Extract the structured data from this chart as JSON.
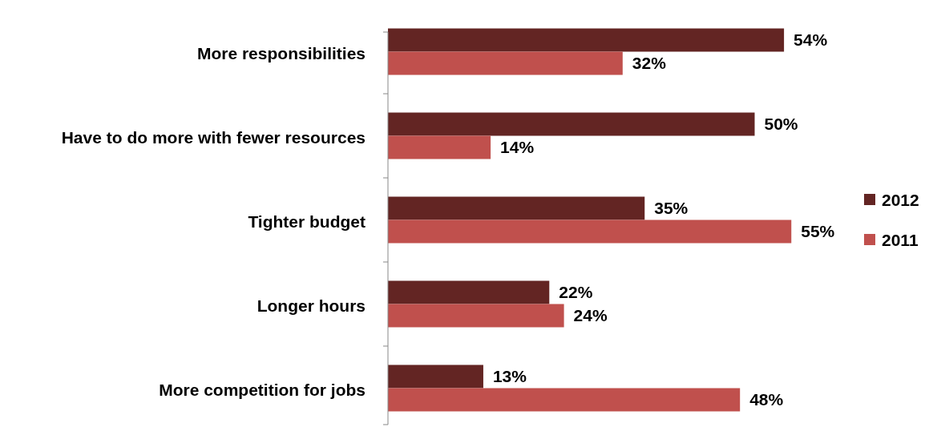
{
  "chart_data": {
    "type": "bar",
    "orientation": "horizontal",
    "categories": [
      "More responsibilities",
      "Have to do more with fewer resources",
      "Tighter budget",
      "Longer hours",
      "More competition for jobs"
    ],
    "series": [
      {
        "name": "2012",
        "color": "#632523",
        "values": [
          54,
          50,
          35,
          22,
          13
        ],
        "value_labels": [
          "54%",
          "50%",
          "35%",
          "22%",
          "13%"
        ]
      },
      {
        "name": "2011",
        "color": "#c0504d",
        "values": [
          32,
          14,
          55,
          24,
          48
        ],
        "value_labels": [
          "32%",
          "14%",
          "55%",
          "24%",
          "48%"
        ]
      }
    ],
    "legend": "right"
  }
}
